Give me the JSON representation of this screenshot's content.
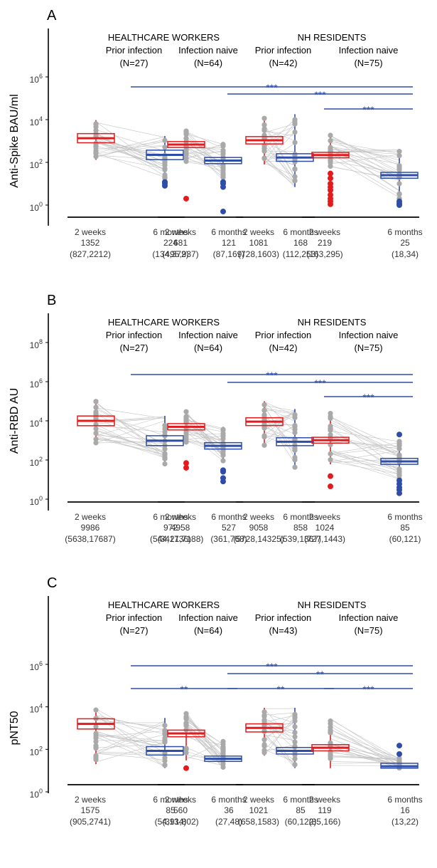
{
  "colors": {
    "two_weeks": "#e41a1c",
    "six_months": "#2e4da7",
    "points": "#a9a9a9",
    "lines": "#c4c4c4",
    "sig": "#2e4da7"
  },
  "chart_data": [
    {
      "type": "box",
      "panel_label": "A",
      "ylabel": "Anti-Spike BAU/ml",
      "log_scale": true,
      "ylim": [
        0.45,
        300000
      ],
      "yticks": [
        1,
        100,
        10000,
        1000000
      ],
      "ytick_labels": [
        {
          "b": "10",
          "e": "0"
        },
        {
          "b": "10",
          "e": "2"
        },
        {
          "b": "10",
          "e": "4"
        },
        {
          "b": "10",
          "e": "6"
        }
      ],
      "groups": [
        {
          "label": "HEALTHCARE WORKERS",
          "subgroups": [
            {
              "label": "Prior infection",
              "n": "(N=27)"
            },
            {
              "label": "Infection naive",
              "n": "(N=64)"
            }
          ]
        },
        {
          "label": "NH RESIDENTS",
          "subgroups": [
            {
              "label": "Prior infection",
              "n": "(N=42)"
            },
            {
              "label": "Infection naive",
              "n": "(N=75)"
            }
          ]
        }
      ],
      "boxes": [
        {
          "category": "2 weeks",
          "median": 1352,
          "q1": 827,
          "q3": 2212,
          "lo": 130,
          "hi": 9500,
          "median_label": "1352",
          "iqr_label": "(827,2212)"
        },
        {
          "category": "6 months",
          "median": 224,
          "q1": 134,
          "q3": 372,
          "lo": 16,
          "hi": 1700,
          "median_label": "224",
          "iqr_label": "(134,372)"
        },
        {
          "category": "2 weeks",
          "median": 681,
          "q1": 495,
          "q3": 937,
          "lo": 100,
          "hi": 3500,
          "median_label": "681",
          "iqr_label": "(495,937)"
        },
        {
          "category": "6 months",
          "median": 121,
          "q1": 87,
          "q3": 169,
          "lo": 14,
          "hi": 800,
          "median_label": "121",
          "iqr_label": "(87,169)"
        },
        {
          "category": "2 weeks",
          "median": 1081,
          "q1": 728,
          "q3": 1603,
          "lo": 80,
          "hi": 14000,
          "median_label": "1081",
          "iqr_label": "(728,1603)"
        },
        {
          "category": "6 months",
          "median": 168,
          "q1": 112,
          "q3": 253,
          "lo": 7,
          "hi": 18000,
          "median_label": "168",
          "iqr_label": "(112,253)"
        },
        {
          "category": "2 weeks",
          "median": 219,
          "q1": 163,
          "q3": 295,
          "lo": 55,
          "hi": 2000,
          "median_label": "219",
          "iqr_label": "(163,295)"
        },
        {
          "category": "6 months",
          "median": 25,
          "q1": 18,
          "q3": 34,
          "lo": 2,
          "hi": 400,
          "median_label": "25",
          "iqr_label": "(18,34)"
        }
      ],
      "outliers": [
        [],
        [
          12,
          10,
          8
        ],
        [
          2
        ],
        [
          12,
          10,
          7,
          0.5
        ],
        [],
        [],
        [
          30,
          18,
          10,
          7,
          5,
          3,
          2,
          1.5,
          1.1
        ],
        [
          1.5,
          1.2,
          1.0
        ]
      ],
      "significance": [
        {
          "from": 1,
          "to": 7,
          "label": "***",
          "level": 0
        },
        {
          "from": 3,
          "to": 7,
          "label": "***",
          "level": 1
        },
        {
          "from": 5,
          "to": 7,
          "label": "***",
          "level": 2
        }
      ]
    },
    {
      "type": "box",
      "panel_label": "B",
      "ylabel": "Anti-RBD AU",
      "log_scale": true,
      "ylim": [
        1,
        10000000
      ],
      "yticks": [
        1,
        100,
        10000,
        1000000,
        100000000
      ],
      "ytick_labels": [
        {
          "b": "10",
          "e": "0"
        },
        {
          "b": "10",
          "e": "2"
        },
        {
          "b": "10",
          "e": "4"
        },
        {
          "b": "10",
          "e": "6"
        },
        {
          "b": "10",
          "e": "8"
        }
      ],
      "groups": [
        {
          "label": "HEALTHCARE WORKERS",
          "subgroups": [
            {
              "label": "Prior infection",
              "n": "(N=27)"
            },
            {
              "label": "Infection naive",
              "n": "(N=64)"
            }
          ]
        },
        {
          "label": "NH RESIDENTS",
          "subgroups": [
            {
              "label": "Prior infection",
              "n": "(N=42)"
            },
            {
              "label": "Infection naive",
              "n": "(N=75)"
            }
          ]
        }
      ],
      "boxes": [
        {
          "category": "2 weeks",
          "median": 9986,
          "q1": 5638,
          "q3": 17687,
          "lo": 700,
          "hi": 100000,
          "median_label": "9986",
          "iqr_label": "(5638,17687)"
        },
        {
          "category": "6 months",
          "median": 972,
          "q1": 544,
          "q3": 1736,
          "lo": 60,
          "hi": 18000,
          "median_label": "972",
          "iqr_label": "(544,1736)"
        },
        {
          "category": "2 weeks",
          "median": 4958,
          "q1": 3421,
          "q3": 7188,
          "lo": 700,
          "hi": 30000,
          "median_label": "4958",
          "iqr_label": "(3421,7188)"
        },
        {
          "category": "6 months",
          "median": 527,
          "q1": 361,
          "q3": 768,
          "lo": 80,
          "hi": 5000,
          "median_label": "527",
          "iqr_label": "(361,768)"
        },
        {
          "category": "2 weeks",
          "median": 9058,
          "q1": 5728,
          "q3": 14325,
          "lo": 500,
          "hi": 100000,
          "median_label": "9058",
          "iqr_label": "(5728,14325)"
        },
        {
          "category": "6 months",
          "median": 858,
          "q1": 539,
          "q3": 1367,
          "lo": 40,
          "hi": 40000,
          "median_label": "858",
          "iqr_label": "(539,1367)"
        },
        {
          "category": "2 weeks",
          "median": 1024,
          "q1": 727,
          "q3": 1443,
          "lo": 60,
          "hi": 25000,
          "median_label": "1024",
          "iqr_label": "(727,1443)"
        },
        {
          "category": "6 months",
          "median": 85,
          "q1": 60,
          "q3": 121,
          "lo": 10,
          "hi": 900,
          "median_label": "85",
          "iqr_label": "(60,121)"
        }
      ],
      "outliers": [
        [],
        [],
        [
          70,
          40
        ],
        [
          30,
          25,
          12,
          8
        ],
        [],
        [],
        [
          15,
          4.5
        ],
        [
          2000,
          9,
          6,
          4,
          3,
          2
        ]
      ],
      "significance": [
        {
          "from": 1,
          "to": 7,
          "label": "***",
          "level": 0
        },
        {
          "from": 3,
          "to": 7,
          "label": "***",
          "level": 1
        },
        {
          "from": 5,
          "to": 7,
          "label": "***",
          "level": 2
        }
      ]
    },
    {
      "type": "box",
      "panel_label": "C",
      "ylabel": "pNT50",
      "log_scale": true,
      "ylim": [
        1.8,
        200000
      ],
      "yticks": [
        1,
        100,
        10000,
        1000000
      ],
      "ytick_labels": [
        {
          "b": "10",
          "e": "0"
        },
        {
          "b": "10",
          "e": "2"
        },
        {
          "b": "10",
          "e": "4"
        },
        {
          "b": "10",
          "e": "6"
        }
      ],
      "groups": [
        {
          "label": "HEALTHCARE WORKERS",
          "subgroups": [
            {
              "label": "Prior infection",
              "n": "(N=27)"
            },
            {
              "label": "Infection naive",
              "n": "(N=64)"
            }
          ]
        },
        {
          "label": "NH RESIDENTS",
          "subgroups": [
            {
              "label": "Prior infection",
              "n": "(N=43)"
            },
            {
              "label": "Infection naive",
              "n": "(N=75)"
            }
          ]
        }
      ],
      "boxes": [
        {
          "category": "2 weeks",
          "median": 1575,
          "q1": 905,
          "q3": 2741,
          "lo": 20,
          "hi": 9000,
          "median_label": "1575",
          "iqr_label": "(905,2741)"
        },
        {
          "category": "6 months",
          "median": 85,
          "q1": 54,
          "q3": 134,
          "lo": 13,
          "hi": 3000,
          "median_label": "85",
          "iqr_label": "(54,134)"
        },
        {
          "category": "2 weeks",
          "median": 560,
          "q1": 391,
          "q3": 802,
          "lo": 30,
          "hi": 6000,
          "median_label": "560",
          "iqr_label": "(391,802)"
        },
        {
          "category": "6 months",
          "median": 36,
          "q1": 27,
          "q3": 48,
          "lo": 13,
          "hi": 250,
          "median_label": "36",
          "iqr_label": "(27,48)"
        },
        {
          "category": "2 weeks",
          "median": 1021,
          "q1": 658,
          "q3": 1583,
          "lo": 50,
          "hi": 9000,
          "median_label": "1021",
          "iqr_label": "(658,1583)"
        },
        {
          "category": "6 months",
          "median": 85,
          "q1": 60,
          "q3": 122,
          "lo": 13,
          "hi": 9000,
          "median_label": "85",
          "iqr_label": "(60,122)"
        },
        {
          "category": "2 weeks",
          "median": 119,
          "q1": 85,
          "q3": 166,
          "lo": 13,
          "hi": 2800,
          "median_label": "119",
          "iqr_label": "(85,166)"
        },
        {
          "category": "6 months",
          "median": 16,
          "q1": 13,
          "q3": 22,
          "lo": 13,
          "hi": 40,
          "median_label": "16",
          "iqr_label": "(13,22)"
        }
      ],
      "outliers": [
        [],
        [],
        [
          13
        ],
        [],
        [],
        [],
        [],
        [
          150,
          60
        ]
      ],
      "significance": [
        {
          "from": 1,
          "to": 7,
          "label": "***",
          "level": 0
        },
        {
          "from": 3,
          "to": 7,
          "label": "**",
          "level": 1
        },
        {
          "from": 1,
          "to": 3,
          "label": "**",
          "level": 2
        },
        {
          "from": 3,
          "to": 5,
          "label": "**",
          "level": 2
        },
        {
          "from": 5,
          "to": 7,
          "label": "***",
          "level": 2
        }
      ]
    }
  ]
}
